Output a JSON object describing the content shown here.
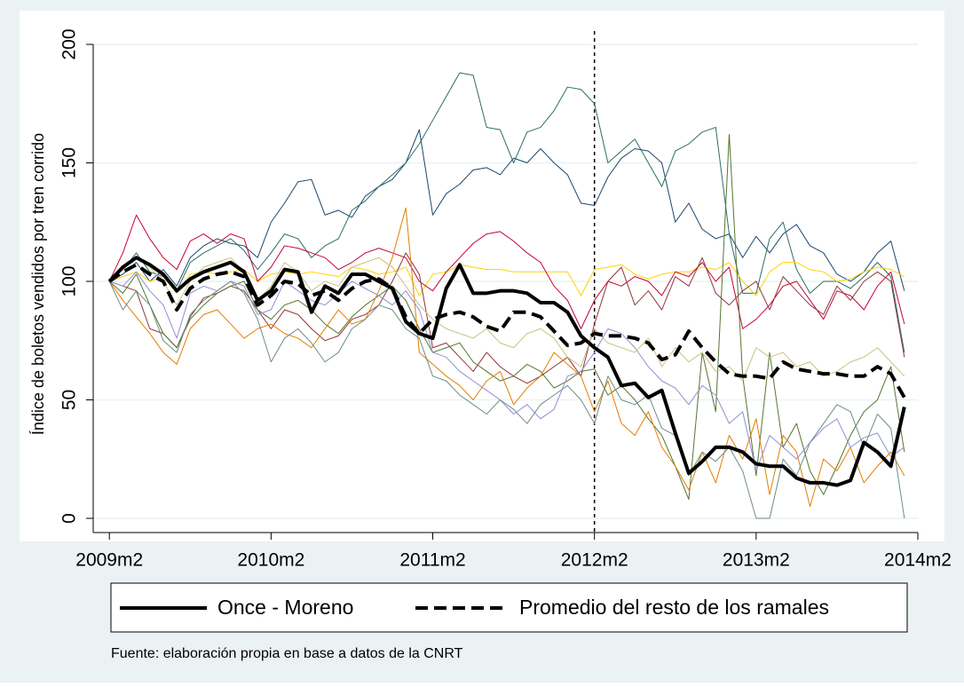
{
  "chart_data": {
    "type": "line",
    "y_label": "Índice de boletos vendidos por tren corrido",
    "note": "Fuente: elaboración propia en base a datos de la CNRT",
    "x": [
      589,
      590,
      591,
      592,
      593,
      594,
      595,
      596,
      597,
      598,
      599,
      600,
      601,
      602,
      603,
      604,
      605,
      606,
      607,
      608,
      609,
      610,
      611,
      612,
      613,
      614,
      615,
      616,
      617,
      618,
      619,
      620,
      621,
      622,
      623,
      624,
      625,
      626,
      627,
      628,
      629,
      630,
      631,
      632,
      633,
      634,
      635,
      636,
      637,
      638,
      639,
      640,
      641,
      642,
      643,
      644,
      645,
      646,
      647,
      648
    ],
    "xlim": [
      587.8,
      649
    ],
    "xticks": [
      {
        "value": 589,
        "label": "2009m2"
      },
      {
        "value": 601,
        "label": "2010m2"
      },
      {
        "value": 613,
        "label": "2011m2"
      },
      {
        "value": 625,
        "label": "2012m2"
      },
      {
        "value": 637,
        "label": "2013m2"
      },
      {
        "value": 649,
        "label": "2014m2"
      }
    ],
    "ylim": [
      -6,
      200
    ],
    "yticks": [
      0,
      50,
      100,
      150,
      200
    ],
    "grid": true,
    "xline": 625,
    "series": [
      {
        "color": "#1a476f",
        "width": 1,
        "values": [
          100,
          103,
          108,
          100,
          105,
          98,
          110,
          115,
          118,
          116,
          115,
          110,
          125,
          133,
          142,
          143,
          128,
          130,
          127,
          136,
          140,
          143,
          150,
          164,
          128,
          137,
          141,
          147,
          148,
          145,
          152,
          150,
          156,
          150,
          145,
          133,
          132,
          144,
          152,
          156,
          155,
          150,
          125,
          133,
          122,
          118,
          120,
          110,
          119,
          112,
          120,
          124,
          115,
          112,
          103,
          100,
          104,
          112,
          117,
          96
        ]
      },
      {
        "color": "#2d6d66",
        "width": 1,
        "values": [
          100,
          105,
          112,
          104,
          102,
          96,
          108,
          112,
          115,
          118,
          113,
          105,
          112,
          120,
          118,
          110,
          115,
          118,
          130,
          134,
          140,
          145,
          150,
          158,
          168,
          178,
          188,
          187,
          165,
          164,
          150,
          163,
          165,
          172,
          182,
          181,
          175,
          150,
          155,
          160,
          150,
          140,
          155,
          158,
          163,
          165,
          120,
          95,
          95,
          118,
          125,
          105,
          95,
          100,
          100,
          97,
          102,
          108,
          102,
          70
        ]
      },
      {
        "color": "#ffd200",
        "width": 1,
        "values": [
          100,
          102,
          104,
          100,
          102,
          95,
          103,
          104,
          103,
          104,
          105,
          100,
          103,
          104,
          103,
          104,
          103,
          102,
          106,
          105,
          103,
          104,
          106,
          94,
          103,
          104,
          107,
          106,
          105,
          105,
          104,
          104,
          104,
          104,
          104,
          94,
          105,
          106,
          107,
          103,
          101,
          103,
          104,
          104,
          106,
          105,
          108,
          100,
          94,
          104,
          108,
          108,
          105,
          104,
          100,
          101,
          104,
          106,
          105,
          102
        ]
      },
      {
        "color": "#c10534",
        "width": 1,
        "values": [
          100,
          112,
          128,
          118,
          110,
          105,
          117,
          120,
          116,
          120,
          118,
          100,
          106,
          115,
          114,
          112,
          110,
          105,
          108,
          112,
          114,
          112,
          110,
          100,
          96,
          104,
          110,
          116,
          120,
          121,
          117,
          112,
          108,
          98,
          92,
          80,
          92,
          100,
          98,
          102,
          100,
          94,
          104,
          102,
          108,
          100,
          106,
          80,
          84,
          90,
          98,
          100,
          92,
          84,
          96,
          94,
          88,
          98,
          104,
          82
        ]
      },
      {
        "color": "#90353b",
        "width": 1,
        "values": [
          100,
          98,
          96,
          80,
          78,
          72,
          85,
          93,
          95,
          98,
          96,
          88,
          80,
          88,
          86,
          80,
          75,
          77,
          84,
          86,
          90,
          100,
          112,
          103,
          72,
          74,
          68,
          62,
          70,
          64,
          60,
          57,
          60,
          64,
          68,
          60,
          82,
          100,
          106,
          90,
          96,
          88,
          102,
          98,
          110,
          95,
          90,
          96,
          100,
          88,
          102,
          96,
          90,
          86,
          98,
          92,
          100,
          104,
          100,
          68
        ]
      },
      {
        "color": "#55752f",
        "width": 1,
        "values": [
          100,
          95,
          103,
          90,
          78,
          72,
          84,
          90,
          95,
          98,
          100,
          88,
          84,
          90,
          92,
          88,
          82,
          78,
          85,
          90,
          94,
          98,
          92,
          80,
          70,
          72,
          74,
          66,
          62,
          58,
          60,
          65,
          62,
          55,
          58,
          62,
          63,
          52,
          56,
          50,
          42,
          35,
          22,
          8,
          70,
          45,
          162,
          60,
          18,
          70,
          30,
          40,
          20,
          10,
          22,
          35,
          45,
          50,
          64,
          28
        ]
      },
      {
        "color": "#e37e00",
        "width": 1,
        "values": [
          100,
          92,
          85,
          78,
          70,
          65,
          80,
          86,
          88,
          82,
          76,
          80,
          82,
          78,
          76,
          72,
          80,
          88,
          82,
          84,
          96,
          110,
          131,
          70,
          65,
          60,
          56,
          50,
          58,
          62,
          48,
          55,
          60,
          70,
          65,
          60,
          45,
          58,
          40,
          35,
          45,
          30,
          22,
          12,
          28,
          15,
          35,
          25,
          42,
          10,
          35,
          28,
          5,
          25,
          20,
          30,
          15,
          22,
          28,
          18
        ]
      },
      {
        "color": "#938dd2",
        "width": 1,
        "values": [
          100,
          98,
          104,
          96,
          90,
          76,
          95,
          98,
          96,
          100,
          98,
          86,
          88,
          100,
          96,
          92,
          90,
          95,
          100,
          97,
          94,
          90,
          96,
          88,
          70,
          68,
          62,
          58,
          54,
          50,
          44,
          48,
          42,
          46,
          60,
          62,
          70,
          80,
          78,
          72,
          64,
          58,
          55,
          48,
          56,
          52,
          40,
          45,
          20,
          35,
          30,
          25,
          32,
          38,
          42,
          30,
          34,
          36,
          26,
          30
        ]
      },
      {
        "color": "#cac27e",
        "width": 1,
        "values": [
          100,
          105,
          110,
          106,
          100,
          90,
          100,
          106,
          108,
          110,
          104,
          92,
          98,
          108,
          104,
          96,
          100,
          98,
          106,
          108,
          110,
          106,
          98,
          90,
          84,
          80,
          78,
          76,
          80,
          74,
          72,
          78,
          80,
          76,
          68,
          64,
          80,
          74,
          72,
          70,
          76,
          64,
          72,
          66,
          70,
          62,
          64,
          58,
          72,
          68,
          70,
          64,
          66,
          60,
          62,
          66,
          68,
          72,
          66,
          60
        ]
      },
      {
        "color": "#6e8e84",
        "width": 1,
        "values": [
          100,
          88,
          96,
          90,
          75,
          70,
          86,
          92,
          96,
          100,
          95,
          84,
          66,
          76,
          80,
          74,
          66,
          70,
          80,
          84,
          90,
          88,
          80,
          76,
          60,
          58,
          52,
          48,
          44,
          50,
          46,
          40,
          48,
          52,
          56,
          50,
          40,
          60,
          50,
          48,
          52,
          38,
          35,
          18,
          28,
          24,
          30,
          20,
          0,
          0,
          25,
          18,
          32,
          40,
          48,
          45,
          30,
          44,
          38,
          0
        ]
      },
      {
        "name": "Once - Moreno",
        "color": "#000000",
        "width": 4,
        "dash": "solid",
        "values": [
          100,
          106,
          110,
          107,
          103,
          96,
          101,
          104,
          106,
          108,
          104,
          92,
          96,
          105,
          104,
          87,
          98,
          95,
          103,
          103,
          100,
          97,
          83,
          78,
          76,
          97,
          107,
          95,
          95,
          96,
          96,
          95,
          91,
          91,
          87,
          77,
          72,
          68,
          56,
          57,
          51,
          54,
          36,
          19,
          24,
          30,
          30,
          28,
          23,
          22,
          22,
          17,
          15,
          15,
          14,
          16,
          32,
          28,
          22,
          47
        ]
      },
      {
        "name": "Promedio del resto de los ramales",
        "color": "#000000",
        "width": 4,
        "dash": "dash",
        "values": [
          100,
          104,
          107,
          103,
          100,
          88,
          97,
          101,
          103,
          104,
          102,
          90,
          94,
          100,
          99,
          94,
          96,
          92,
          97,
          100,
          101,
          97,
          85,
          78,
          84,
          86,
          87,
          85,
          81,
          79,
          87,
          87,
          85,
          79,
          73,
          74,
          78,
          77,
          77,
          76,
          74,
          67,
          69,
          79,
          72,
          66,
          61,
          60,
          60,
          59,
          66,
          63,
          62,
          61,
          61,
          60,
          60,
          64,
          61,
          51
        ]
      }
    ]
  }
}
